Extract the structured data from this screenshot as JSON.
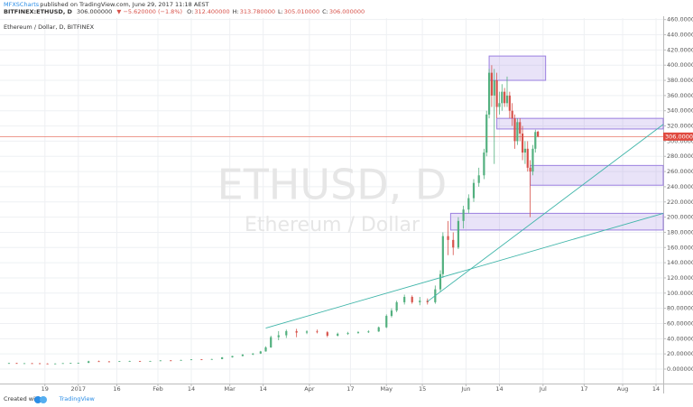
{
  "header": {
    "author": "MFXSCharts",
    "published": "published on TradingView.com, June 29, 2017 11:18 AEST",
    "symbol": "BITFINEX:ETHUSD, D",
    "price": "306.000000",
    "change": "▼ −5.620000 (−1.8%)",
    "ohlc": [
      {
        "label": "O:",
        "value": "312.400000"
      },
      {
        "label": "H:",
        "value": "313.780000"
      },
      {
        "label": "L:",
        "value": "305.010000"
      },
      {
        "label": "C:",
        "value": "306.000000"
      }
    ]
  },
  "chart_data": {
    "type": "candlestick",
    "legend": "Ethereum / Dollar, D, BITFINEX",
    "watermark": "ETHUSD, D",
    "watermark_sub": "Ethereum / Dollar",
    "up_color": "#53b07f",
    "down_color": "#d7524a",
    "zone_color": "#9b7fe0",
    "trendline_color": "#3fb5a9",
    "price_line_color": "#e8786b",
    "grid": true,
    "x": [
      -27,
      -24,
      -21,
      -18,
      -15,
      -12,
      -9,
      -6,
      -3,
      0,
      4,
      8,
      12,
      16,
      20,
      24,
      28,
      32,
      36,
      40,
      44,
      48,
      52,
      56,
      60,
      64,
      68,
      71,
      73,
      75,
      78,
      81,
      85,
      89,
      93,
      97,
      101,
      105,
      109,
      113,
      117,
      120,
      122,
      124,
      127,
      130,
      133,
      136,
      139,
      141,
      142,
      144,
      146,
      148,
      150,
      152,
      154,
      156,
      158,
      159,
      160,
      161,
      162,
      163,
      164,
      165,
      166,
      167,
      168,
      169,
      170,
      171,
      172,
      173,
      174,
      175,
      176,
      177,
      178,
      179
    ],
    "open": [
      7.8,
      7.9,
      7.4,
      7.7,
      7.6,
      7.3,
      7.2,
      7.3,
      7.8,
      8.0,
      8.2,
      10.3,
      10.0,
      9.8,
      10.4,
      10.6,
      10.5,
      10.7,
      11.4,
      11.3,
      12.0,
      12.8,
      12.5,
      13.2,
      15.5,
      17.2,
      19.2,
      20.5,
      23.2,
      28.5,
      42,
      44.5,
      50,
      48,
      49.5,
      48.5,
      44,
      46.5,
      47.5,
      48.5,
      49.5,
      55,
      70,
      77,
      88,
      95,
      88,
      90,
      88,
      105,
      125,
      175,
      170,
      160,
      195,
      210,
      225,
      245,
      255,
      285,
      335,
      390,
      360,
      380,
      345,
      350,
      365,
      350,
      360,
      340,
      330,
      300,
      325,
      310,
      285,
      290,
      265,
      260,
      290,
      312.4
    ],
    "high": [
      8.2,
      8.1,
      7.9,
      8.0,
      7.9,
      7.6,
      7.5,
      7.9,
      8.2,
      8.5,
      11.0,
      11.2,
      10.5,
      10.6,
      11.0,
      10.9,
      10.8,
      11.6,
      11.8,
      12.2,
      13.0,
      13.0,
      13.5,
      15.8,
      17.5,
      19.5,
      21,
      24,
      30,
      44,
      50,
      52,
      53,
      51,
      52,
      50,
      48,
      49,
      50,
      51,
      56,
      72,
      80,
      90,
      98,
      97,
      95,
      93,
      110,
      130,
      180,
      195,
      180,
      200,
      215,
      230,
      250,
      265,
      290,
      340,
      395,
      400,
      395,
      390,
      365,
      375,
      370,
      385,
      365,
      350,
      335,
      330,
      330,
      320,
      300,
      300,
      275,
      295,
      315,
      313.78
    ],
    "low": [
      7.5,
      7.2,
      7.1,
      7.4,
      7.2,
      7.0,
      6.9,
      7.2,
      7.6,
      7.8,
      8.0,
      9.6,
      9.5,
      9.6,
      10.1,
      10.3,
      10.3,
      10.5,
      11.1,
      11.1,
      11.8,
      12.2,
      12.3,
      13.0,
      15.2,
      16.8,
      18.5,
      20,
      23,
      28,
      38,
      41,
      42,
      46,
      47,
      42,
      43,
      45,
      46.5,
      47.5,
      49,
      54,
      68,
      75,
      85,
      86,
      84,
      85,
      86,
      102,
      120,
      150,
      150,
      158,
      185,
      205,
      220,
      240,
      250,
      280,
      330,
      345,
      270,
      330,
      335,
      340,
      345,
      345,
      330,
      320,
      290,
      295,
      300,
      275,
      270,
      260,
      200,
      255,
      285,
      305.01
    ],
    "close": [
      7.9,
      7.4,
      7.7,
      7.6,
      7.3,
      7.2,
      7.3,
      7.8,
      8.0,
      8.2,
      10.3,
      10.0,
      9.8,
      10.4,
      10.6,
      10.5,
      10.7,
      11.4,
      11.3,
      12.0,
      12.8,
      12.5,
      13.2,
      15.5,
      17.2,
      19.2,
      20.5,
      23.2,
      28.5,
      42,
      44.5,
      50,
      48,
      49.5,
      48.5,
      44,
      46.5,
      47.5,
      48.5,
      49.5,
      55,
      70,
      77,
      88,
      95,
      88,
      90,
      88,
      105,
      125,
      175,
      170,
      160,
      195,
      210,
      225,
      245,
      255,
      285,
      335,
      390,
      360,
      380,
      345,
      350,
      365,
      350,
      360,
      340,
      330,
      300,
      325,
      310,
      285,
      290,
      265,
      260,
      290,
      312,
      306
    ],
    "zones": [
      {
        "x": [
          160,
          182
        ],
        "y": [
          380,
          412
        ]
      },
      {
        "x": [
          163,
          228
        ],
        "y": [
          316,
          330
        ]
      },
      {
        "x": [
          176,
          228
        ],
        "y": [
          242,
          268
        ]
      },
      {
        "x": [
          145,
          228
        ],
        "y": [
          183,
          205
        ]
      }
    ],
    "trendlines": [
      {
        "x": [
          73,
          228
        ],
        "y": [
          54,
          205
        ]
      },
      {
        "x": [
          136,
          228
        ],
        "y": [
          89,
          322
        ]
      }
    ],
    "last_price": {
      "value": 306,
      "label": "306.000000"
    },
    "xlim": [
      -30.5,
      227.8
    ],
    "ylim": [
      -19,
      462
    ],
    "xticks": [
      {
        "value": -13,
        "label": "19"
      },
      {
        "value": 0,
        "label": "2017"
      },
      {
        "value": 15,
        "label": "16"
      },
      {
        "value": 31,
        "label": "Feb"
      },
      {
        "value": 44,
        "label": "14"
      },
      {
        "value": 59,
        "label": "Mar"
      },
      {
        "value": 72,
        "label": "14"
      },
      {
        "value": 90,
        "label": "Apr"
      },
      {
        "value": 106,
        "label": "17"
      },
      {
        "value": 120,
        "label": "May"
      },
      {
        "value": 134,
        "label": "15"
      },
      {
        "value": 151,
        "label": "Jun"
      },
      {
        "value": 164,
        "label": "14"
      },
      {
        "value": 181,
        "label": "Jul"
      },
      {
        "value": 197,
        "label": "17"
      },
      {
        "value": 212,
        "label": "Aug"
      },
      {
        "value": 225,
        "label": "14"
      }
    ],
    "yticks": [
      {
        "value": 0,
        "label": "0.000000"
      },
      {
        "value": 20,
        "label": "20.000000"
      },
      {
        "value": 40,
        "label": "40.000000"
      },
      {
        "value": 60,
        "label": "60.000000"
      },
      {
        "value": 80,
        "label": "80.000000"
      },
      {
        "value": 100,
        "label": "100.000000"
      },
      {
        "value": 120,
        "label": "120.000000"
      },
      {
        "value": 140,
        "label": "140.000000"
      },
      {
        "value": 160,
        "label": "160.000000"
      },
      {
        "value": 180,
        "label": "180.000000"
      },
      {
        "value": 200,
        "label": "200.000000"
      },
      {
        "value": 220,
        "label": "220.000000"
      },
      {
        "value": 240,
        "label": "240.000000"
      },
      {
        "value": 260,
        "label": "260.000000"
      },
      {
        "value": 280,
        "label": "280.000000"
      },
      {
        "value": 300,
        "label": "300.000000"
      },
      {
        "value": 320,
        "label": "320.000000"
      },
      {
        "value": 340,
        "label": "340.000000"
      },
      {
        "value": 360,
        "label": "360.000000"
      },
      {
        "value": 380,
        "label": "380.000000"
      },
      {
        "value": 400,
        "label": "400.000000"
      },
      {
        "value": 420,
        "label": "420.000000"
      },
      {
        "value": 440,
        "label": "440.000000"
      },
      {
        "value": 460,
        "label": "460.000000"
      }
    ]
  },
  "footer": {
    "created": "Created with",
    "brand": "TradingView"
  }
}
